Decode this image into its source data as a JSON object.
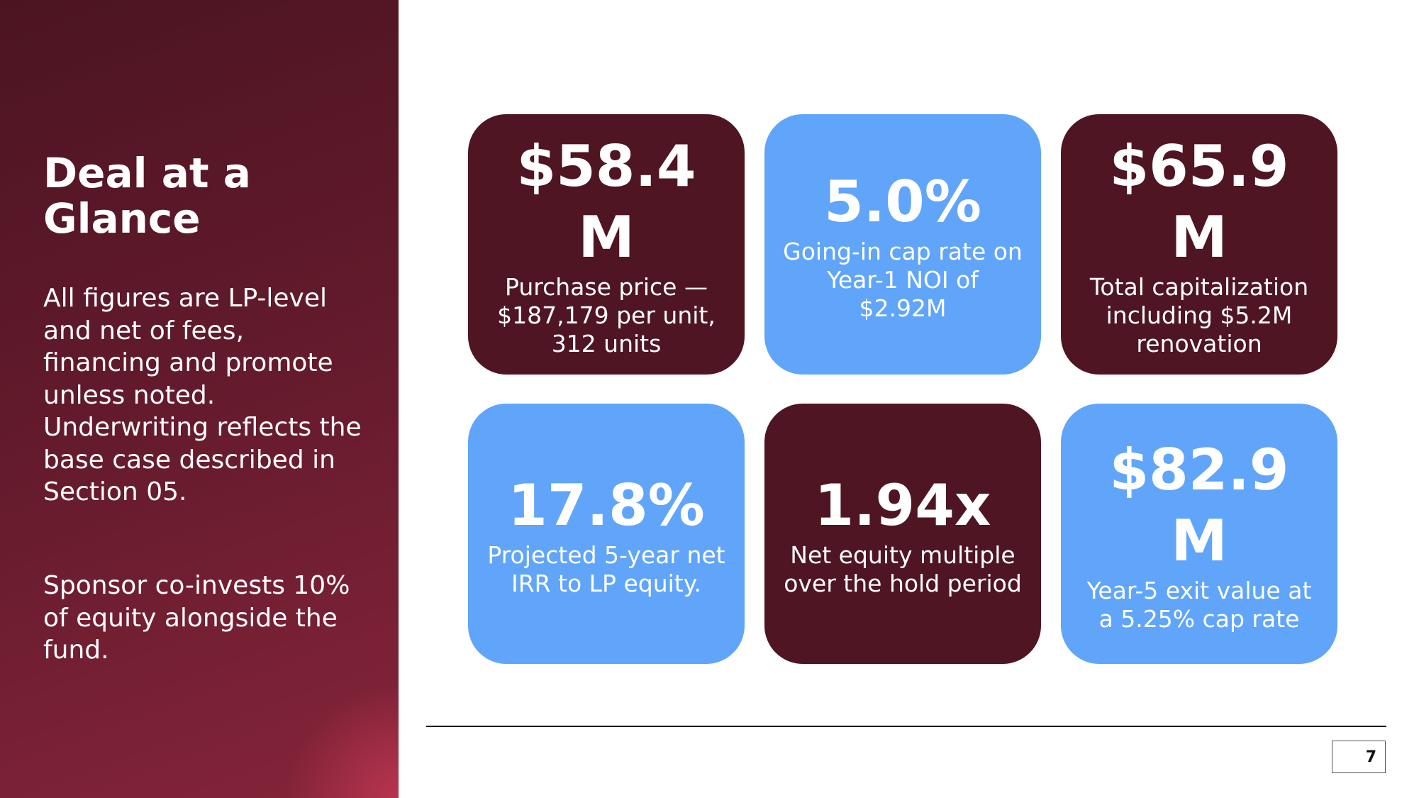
{
  "sidebar": {
    "title": "Deal at a Glance",
    "paragraphs": [
      "All figures are LP-level and net of fees, financing and promote unless noted. Underwriting reflects the base case described in Section 05.",
      "Sponsor co-invests 10% of equity alongside the fund."
    ]
  },
  "cards": [
    {
      "value": "$58.4M",
      "label": "Purchase price — $187,179 per unit, 312 units",
      "color": "#4f1522"
    },
    {
      "value": "5.0%",
      "label": "Going-in cap rate on Year-1 NOI of $2.92M",
      "color": "#60a5fa"
    },
    {
      "value": "$65.9M",
      "label": "Total capitalization including $5.2M renovation",
      "color": "#4f1522"
    },
    {
      "value": "17.8%",
      "label": "Projected 5-year net IRR to LP equity.",
      "color": "#60a5fa"
    },
    {
      "value": "1.94x",
      "label": "Net equity multiple over the hold period",
      "color": "#4f1522"
    },
    {
      "value": "$82.9M",
      "label": "Year-5 exit value at a 5.25% cap rate",
      "color": "#60a5fa"
    }
  ],
  "footer": {
    "page_number": "7"
  }
}
